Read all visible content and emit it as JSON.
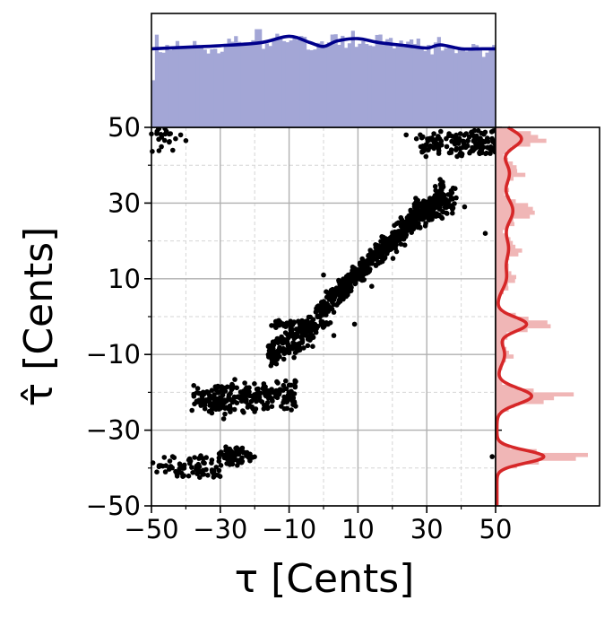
{
  "chart_data": {
    "type": "scatter",
    "xlabel": "τ [Cents]",
    "ylabel": "τ̂ [Cents]",
    "xlim": [
      -50,
      50
    ],
    "ylim": [
      -50,
      50
    ],
    "xticks": [
      -50,
      -30,
      -10,
      10,
      30,
      50
    ],
    "yticks": [
      -50,
      -30,
      -10,
      10,
      30,
      50
    ],
    "xtick_labels": [
      "−50",
      "−30",
      "−10",
      "10",
      "30",
      "50"
    ],
    "ytick_labels": [
      "−50",
      "−30",
      "−10",
      "10",
      "30",
      "50"
    ],
    "minor_ticks": [
      -40,
      -20,
      0,
      20,
      40
    ],
    "grid": true,
    "colors": {
      "scatter": "#000000",
      "top_hist": "#a3a6d6",
      "top_kde": "#00008b",
      "right_hist": "#f0b6b6",
      "right_kde": "#d62728",
      "grid_major": "#b0b0b0",
      "grid_minor": "#d6d6d6"
    },
    "clusters": [
      {
        "x": [
          -50,
          -44
        ],
        "y": [
          44,
          50
        ],
        "n": 20,
        "slope": 0,
        "spread": 1.0
      },
      {
        "x": [
          -50,
          -30
        ],
        "y": [
          -42,
          -37
        ],
        "n": 70,
        "slope": 0,
        "spread": 0.9
      },
      {
        "x": [
          -30,
          -23
        ],
        "y": [
          -39,
          -35
        ],
        "n": 55,
        "slope": 0,
        "spread": 0.8
      },
      {
        "x": [
          -23,
          -20
        ],
        "y": [
          -38,
          -36
        ],
        "n": 8,
        "slope": 0,
        "spread": 0.6
      },
      {
        "x": [
          -38,
          -8
        ],
        "y": [
          -25,
          -18
        ],
        "n": 260,
        "slope": 0.15,
        "spread": 1.5
      },
      {
        "x": [
          -16,
          -2
        ],
        "y": [
          -13,
          0
        ],
        "n": 160,
        "slope": 0.55,
        "spread": 2.2
      },
      {
        "x": [
          -16,
          2
        ],
        "y": [
          -3,
          -1
        ],
        "n": 55,
        "slope": 0,
        "spread": 0.5
      },
      {
        "x": [
          -2,
          35
        ],
        "y": [
          0,
          34
        ],
        "n": 620,
        "slope": 0.95,
        "spread": 2.4
      },
      {
        "x": [
          26,
          38
        ],
        "y": [
          25,
          33
        ],
        "n": 120,
        "slope": 0.4,
        "spread": 1.8
      },
      {
        "x": [
          28,
          50
        ],
        "y": [
          42,
          49
        ],
        "n": 140,
        "slope": 0.2,
        "spread": 1.2
      }
    ],
    "outliers": [
      {
        "x": -43,
        "y": 47
      },
      {
        "x": -40,
        "y": 46.5
      },
      {
        "x": -41.5,
        "y": 48
      },
      {
        "x": 24,
        "y": 48
      },
      {
        "x": 27,
        "y": 47
      },
      {
        "x": 47,
        "y": 22
      },
      {
        "x": 49,
        "y": -37
      },
      {
        "x": 0,
        "y": 11
      },
      {
        "x": -29,
        "y": -27
      },
      {
        "x": -11,
        "y": -17
      },
      {
        "x": 3,
        "y": -5
      },
      {
        "x": 9,
        "y": -2
      },
      {
        "x": 41,
        "y": 29
      },
      {
        "x": -35,
        "y": -22
      },
      {
        "x": 14,
        "y": 8
      }
    ],
    "top_hist": {
      "bins": 100,
      "range": [
        -50,
        50
      ],
      "ymax": 1.45,
      "kde": [
        {
          "x": -50,
          "y": 1.0
        },
        {
          "x": -40,
          "y": 1.02
        },
        {
          "x": -30,
          "y": 1.04
        },
        {
          "x": -18,
          "y": 1.08
        },
        {
          "x": -10,
          "y": 1.16
        },
        {
          "x": -4,
          "y": 1.08
        },
        {
          "x": 0,
          "y": 1.03
        },
        {
          "x": 4,
          "y": 1.1
        },
        {
          "x": 10,
          "y": 1.13
        },
        {
          "x": 16,
          "y": 1.08
        },
        {
          "x": 24,
          "y": 1.04
        },
        {
          "x": 30,
          "y": 1.01
        },
        {
          "x": 34,
          "y": 1.05
        },
        {
          "x": 40,
          "y": 1.0
        },
        {
          "x": 46,
          "y": 1.0
        },
        {
          "x": 50,
          "y": 1.0
        }
      ]
    },
    "right_hist": {
      "bins": 100,
      "range": [
        -50,
        50
      ],
      "xmax": 3.0,
      "kde_peaks": [
        {
          "center": 47,
          "height": 0.7,
          "width": 2.4
        },
        {
          "center": 38,
          "height": 0.35,
          "width": 3.2
        },
        {
          "center": 28,
          "height": 0.45,
          "width": 3.5
        },
        {
          "center": 18,
          "height": 0.32,
          "width": 3.5
        },
        {
          "center": 10,
          "height": 0.25,
          "width": 3.0
        },
        {
          "center": -2,
          "height": 0.85,
          "width": 1.9
        },
        {
          "center": -10,
          "height": 0.22,
          "width": 2.8
        },
        {
          "center": -21,
          "height": 1.0,
          "width": 2.1
        },
        {
          "center": -37,
          "height": 1.35,
          "width": 1.7
        }
      ]
    }
  }
}
